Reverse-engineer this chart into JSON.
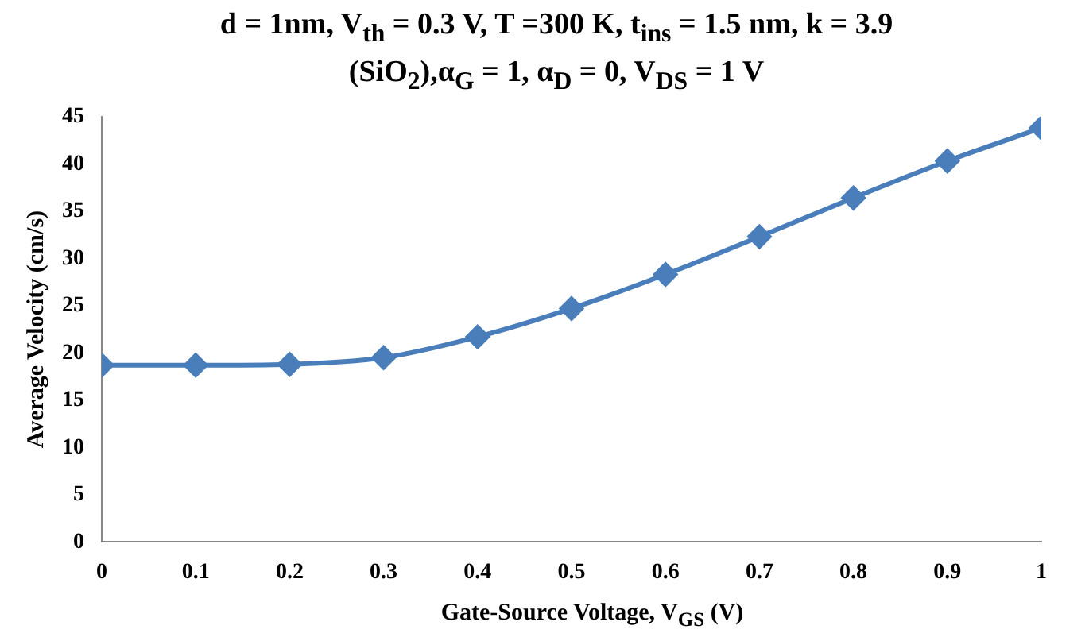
{
  "chart_data": {
    "type": "line",
    "title": "d = 1nm, V$_{th}$ = 0.3 V, T =300 K, t$_{ins}$ = 1.5 nm, k = 3.9 (SiO$_{2}$),α$_{G}$ = 1, α$_{D}$ = 0, V$_{DS}$ = 1 V",
    "xlabel": "Gate-Source Voltage, V$_{GS}$ (V)",
    "ylabel": "Average Velocity (cm/s)",
    "x": [
      0,
      0.1,
      0.2,
      0.3,
      0.4,
      0.5,
      0.6,
      0.7,
      0.8,
      0.9,
      1
    ],
    "series": [
      {
        "color": "#4a7ebb",
        "values": [
          18.7,
          18.7,
          18.8,
          19.5,
          21.7,
          24.7,
          28.3,
          32.3,
          36.4,
          40.3,
          43.8
        ]
      }
    ],
    "xlim": [
      0,
      1
    ],
    "xticks": [
      0,
      0.1,
      0.2,
      0.3,
      0.4,
      0.5,
      0.6,
      0.7,
      0.8,
      0.9,
      1
    ],
    "ylim": [
      0,
      45
    ],
    "yticks": [
      0,
      5,
      10,
      15,
      20,
      25,
      30,
      35,
      40,
      45
    ],
    "grid": false,
    "legend": false,
    "marker": "diamond",
    "line_style": "solid"
  }
}
